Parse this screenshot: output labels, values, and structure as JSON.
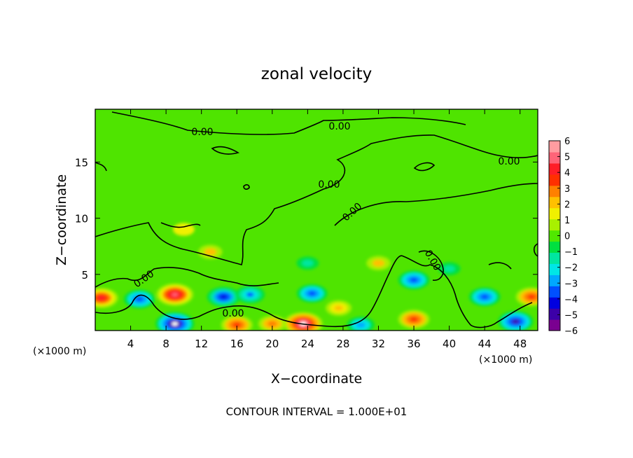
{
  "chart_data": {
    "type": "heatmap",
    "title": "zonal velocity",
    "xlabel": "X−coordinate",
    "ylabel": "Z−coordinate",
    "x_unit_left": "(×1000 m)",
    "x_unit_right": "(×1000 m)",
    "footer": "CONTOUR INTERVAL = 1.000E+01",
    "xlim": [
      0,
      50
    ],
    "ylim": [
      0,
      19.7
    ],
    "x_ticks": [
      4,
      8,
      12,
      16,
      20,
      24,
      28,
      32,
      36,
      40,
      44,
      48
    ],
    "x_tick_labels": [
      "4",
      "8",
      "12",
      "16",
      "20",
      "24",
      "28",
      "32",
      "36",
      "40",
      "44",
      "48"
    ],
    "y_ticks": [
      5,
      10,
      15
    ],
    "y_tick_labels": [
      "5",
      "10",
      "15"
    ],
    "contour_label": "0.00",
    "colorbar": {
      "min": -6,
      "max": 6,
      "tick_labels": [
        "6",
        "5",
        "4",
        "3",
        "2",
        "1",
        "0",
        "−1",
        "−2",
        "−3",
        "−4",
        "−5",
        "−6"
      ],
      "colors": [
        "#7a0090",
        "#3c00a8",
        "#0000e0",
        "#0050ff",
        "#00a8ff",
        "#00e6e6",
        "#00e6a0",
        "#00e040",
        "#50e800",
        "#a8f000",
        "#f0f000",
        "#ffc000",
        "#ff8000",
        "#ff3000",
        "#ff1e28",
        "#ff6478",
        "#ff9ca0"
      ]
    },
    "features": [
      {
        "x": 0.7,
        "z": 2.9,
        "value": 4.5
      },
      {
        "x": 5.0,
        "z": 2.8,
        "value": -4.0
      },
      {
        "x": 9.0,
        "z": 3.2,
        "value": 5.5
      },
      {
        "x": 14.5,
        "z": 3.0,
        "value": -4.5
      },
      {
        "x": 17.5,
        "z": 3.2,
        "value": -3.5
      },
      {
        "x": 24.5,
        "z": 3.3,
        "value": -3.8
      },
      {
        "x": 27.5,
        "z": 2.0,
        "value": 2.5
      },
      {
        "x": 36.0,
        "z": 4.5,
        "value": -4.0
      },
      {
        "x": 44.0,
        "z": 3.0,
        "value": -4.0
      },
      {
        "x": 49.3,
        "z": 3.0,
        "value": 4.0
      },
      {
        "x": 9.0,
        "z": 0.6,
        "value": -6.0
      },
      {
        "x": 16.0,
        "z": 0.5,
        "value": 4.0
      },
      {
        "x": 23.5,
        "z": 0.6,
        "value": 6.0
      },
      {
        "x": 36.0,
        "z": 1.0,
        "value": 4.0
      },
      {
        "x": 47.5,
        "z": 0.8,
        "value": -5.0
      },
      {
        "x": 30.0,
        "z": 0.5,
        "value": -3.0
      },
      {
        "x": 20.0,
        "z": 0.6,
        "value": 3.0
      },
      {
        "x": 13.0,
        "z": 7.0,
        "value": 2.0
      },
      {
        "x": 32.0,
        "z": 6.0,
        "value": 2.0
      },
      {
        "x": 24.0,
        "z": 6.0,
        "value": -1.5
      },
      {
        "x": 10.0,
        "z": 9.0,
        "value": 1.3
      },
      {
        "x": 40.0,
        "z": 5.5,
        "value": -1.5
      }
    ]
  }
}
